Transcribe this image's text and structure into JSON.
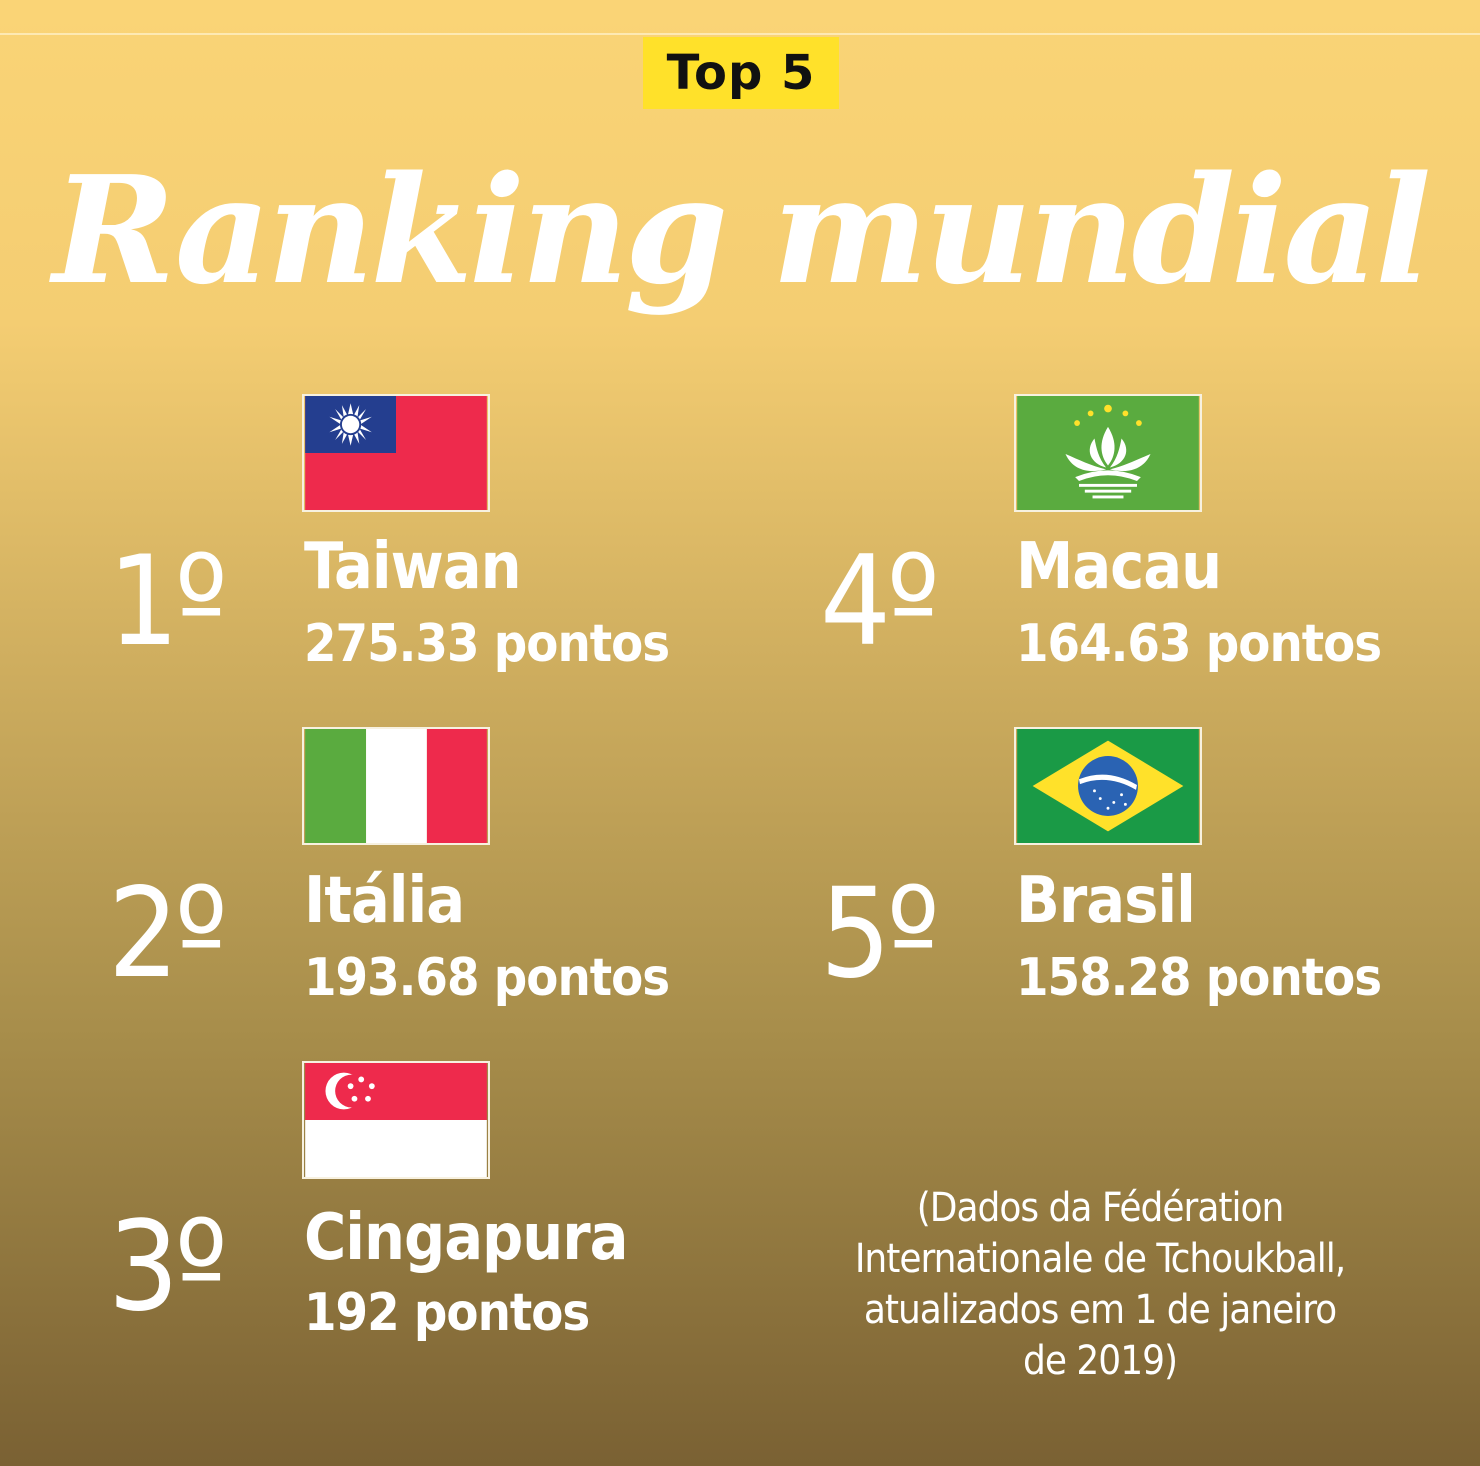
{
  "badge": "Top 5",
  "title": "Ranking mundial",
  "ranking": [
    {
      "rank": "1º",
      "country": "Taiwan",
      "points": "275.33 pontos",
      "flag": "taiwan-flag-icon"
    },
    {
      "rank": "2º",
      "country": "Itália",
      "points": "193.68 pontos",
      "flag": "italy-flag-icon"
    },
    {
      "rank": "3º",
      "country": "Cingapura",
      "points": "192 pontos",
      "flag": "singapore-flag-icon"
    },
    {
      "rank": "4º",
      "country": "Macau",
      "points": "164.63 pontos",
      "flag": "macau-flag-icon"
    },
    {
      "rank": "5º",
      "country": "Brasil",
      "points": "158.28 pontos",
      "flag": "brazil-flag-icon"
    }
  ],
  "source": "(Dados da Fédération Internationale de Tchoukball, atualizados em 1 de janeiro de 2019)",
  "colors": {
    "badge": "#ffe12a",
    "background_top": "#fad476",
    "background_bottom": "#7a6133"
  }
}
